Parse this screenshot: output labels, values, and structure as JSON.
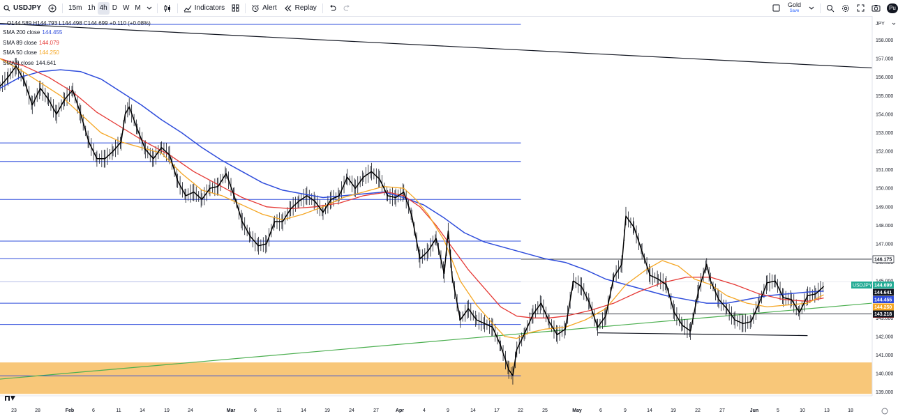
{
  "toolbar": {
    "symbol": "USDJPY",
    "intervals": [
      "15m",
      "1h",
      "4h",
      "D",
      "W",
      "M"
    ],
    "active_interval": "4h",
    "indicators_label": "Indicators",
    "alert_label": "Alert",
    "replay_label": "Replay",
    "layout_name": "Gold",
    "layout_status": "Save",
    "user_initials": "Pu"
  },
  "legend": {
    "ohlc": "O144.589 H144.793 L144.498 C144.699 +0.110 (+0.08%)",
    "studies": [
      {
        "label": "SMA 200 close",
        "value": "144.455",
        "color": "#2e4cdb"
      },
      {
        "label": "SMA 89 close",
        "value": "144.079",
        "color": "#e53935"
      },
      {
        "label": "SMA 50 close",
        "value": "144.250",
        "color": "#f5a623"
      },
      {
        "label": "SMA 5 close",
        "value": "144.641",
        "color": "#000000"
      }
    ]
  },
  "chart_data": {
    "type": "line",
    "symbol": "USDJPY",
    "currency": "JPY",
    "interval": "4h",
    "ylim": [
      138.8,
      159.3
    ],
    "y_ticks": [
      "139.000",
      "140.000",
      "141.000",
      "142.000",
      "143.000",
      "144.000",
      "145.000",
      "146.000",
      "147.000",
      "148.000",
      "149.000",
      "150.000",
      "151.000",
      "152.000",
      "153.000",
      "154.000",
      "155.000",
      "156.000",
      "157.000",
      "158.000"
    ],
    "x_ticks": [
      "23",
      "28",
      "Feb",
      "6",
      "11",
      "14",
      "19",
      "24",
      "Mar",
      "6",
      "11",
      "14",
      "19",
      "24",
      "27",
      "Apr",
      "4",
      "9",
      "14",
      "17",
      "22",
      "25",
      "May",
      "6",
      "9",
      "14",
      "19",
      "22",
      "27",
      "Jun",
      "5",
      "10",
      "13",
      "18"
    ],
    "grid": false,
    "legend_position": "top-left",
    "price_labels": [
      {
        "value": "146.175",
        "bg": "#ffffff",
        "fg": "#131722"
      },
      {
        "value": "144.699",
        "bg": "#22ab94",
        "fg": "#ffffff",
        "tag": "USDJPY"
      },
      {
        "value": "144.641",
        "bg": "#131722",
        "fg": "#ffffff"
      },
      {
        "value": "144.455",
        "bg": "#2e4cdb",
        "fg": "#ffffff"
      },
      {
        "value": "144.250",
        "bg": "#f5a623",
        "fg": "#ffffff"
      },
      {
        "value": "144.079",
        "bg": "#e53935",
        "fg": "#ffffff"
      },
      {
        "value": "143.218",
        "bg": "#131722",
        "fg": "#ffffff"
      }
    ],
    "horizontal_levels": [
      158.85,
      152.45,
      151.45,
      149.4,
      147.15,
      146.2,
      144.95,
      143.8,
      142.65,
      139.87
    ],
    "support_zone": [
      138.9,
      140.6
    ],
    "trendlines": [
      {
        "color": "#131722",
        "points": [
          [
            0,
            158.9
          ],
          [
            216,
            156.5
          ]
        ]
      },
      {
        "color": "#4caf50",
        "points": [
          [
            0,
            139.7
          ],
          [
            216,
            143.8
          ]
        ]
      },
      {
        "color": "#131722",
        "points": [
          [
            148,
            142.2
          ],
          [
            200,
            142.05
          ]
        ]
      }
    ],
    "series": [
      {
        "name": "SMA 5",
        "color": "#000000",
        "width": 1.5,
        "values": [
          [
            0,
            155.5
          ],
          [
            2,
            156.0
          ],
          [
            4,
            156.6
          ],
          [
            6,
            155.8
          ],
          [
            8,
            154.5
          ],
          [
            10,
            155.4
          ],
          [
            12,
            154.8
          ],
          [
            14,
            154.0
          ],
          [
            16,
            154.8
          ],
          [
            18,
            155.3
          ],
          [
            20,
            154.0
          ],
          [
            22,
            152.5
          ],
          [
            24,
            151.6
          ],
          [
            26,
            151.6
          ],
          [
            28,
            152.0
          ],
          [
            30,
            152.5
          ],
          [
            31,
            154.0
          ],
          [
            32,
            154.4
          ],
          [
            34,
            153.2
          ],
          [
            36,
            152.1
          ],
          [
            38,
            151.6
          ],
          [
            40,
            152.2
          ],
          [
            42,
            151.8
          ],
          [
            44,
            150.4
          ],
          [
            46,
            149.6
          ],
          [
            48,
            149.8
          ],
          [
            50,
            149.4
          ],
          [
            52,
            150.0
          ],
          [
            54,
            150.1
          ],
          [
            56,
            150.8
          ],
          [
            58,
            149.6
          ],
          [
            60,
            148.2
          ],
          [
            62,
            147.4
          ],
          [
            64,
            146.9
          ],
          [
            66,
            147.0
          ],
          [
            68,
            148.2
          ],
          [
            70,
            148.2
          ],
          [
            72,
            148.9
          ],
          [
            74,
            149.3
          ],
          [
            76,
            149.6
          ],
          [
            78,
            149.3
          ],
          [
            80,
            148.7
          ],
          [
            82,
            149.4
          ],
          [
            84,
            149.6
          ],
          [
            86,
            150.6
          ],
          [
            88,
            150.0
          ],
          [
            90,
            150.6
          ],
          [
            92,
            150.9
          ],
          [
            94,
            150.5
          ],
          [
            96,
            149.6
          ],
          [
            98,
            149.5
          ],
          [
            100,
            149.8
          ],
          [
            102,
            148.5
          ],
          [
            104,
            146.2
          ],
          [
            106,
            146.6
          ],
          [
            108,
            147.3
          ],
          [
            110,
            145.4
          ],
          [
            111,
            147.7
          ],
          [
            112,
            145.2
          ],
          [
            114,
            142.9
          ],
          [
            116,
            143.5
          ],
          [
            118,
            142.9
          ],
          [
            120,
            142.7
          ],
          [
            122,
            142.5
          ],
          [
            124,
            141.5
          ],
          [
            126,
            140.2
          ],
          [
            127,
            139.9
          ],
          [
            128,
            141.3
          ],
          [
            130,
            142.2
          ],
          [
            132,
            143.2
          ],
          [
            134,
            143.8
          ],
          [
            136,
            142.8
          ],
          [
            138,
            142.1
          ],
          [
            140,
            142.4
          ],
          [
            142,
            145.0
          ],
          [
            144,
            144.7
          ],
          [
            146,
            143.8
          ],
          [
            148,
            142.5
          ],
          [
            150,
            143.1
          ],
          [
            152,
            145.2
          ],
          [
            154,
            145.9
          ],
          [
            155,
            148.5
          ],
          [
            157,
            147.9
          ],
          [
            159,
            146.6
          ],
          [
            161,
            145.3
          ],
          [
            163,
            145.1
          ],
          [
            165,
            144.8
          ],
          [
            167,
            143.3
          ],
          [
            169,
            142.6
          ],
          [
            171,
            142.3
          ],
          [
            173,
            144.5
          ],
          [
            175,
            145.9
          ],
          [
            176,
            145.0
          ],
          [
            178,
            144.0
          ],
          [
            180,
            143.5
          ],
          [
            182,
            142.9
          ],
          [
            184,
            142.7
          ],
          [
            186,
            142.8
          ],
          [
            188,
            143.8
          ],
          [
            190,
            144.9
          ],
          [
            192,
            145.0
          ],
          [
            194,
            144.1
          ],
          [
            196,
            144.0
          ],
          [
            198,
            143.3
          ],
          [
            200,
            144.2
          ],
          [
            202,
            144.3
          ],
          [
            204,
            144.7
          ]
        ]
      },
      {
        "name": "SMA 50",
        "color": "#f5a623",
        "width": 1.3,
        "values": [
          [
            0,
            157.0
          ],
          [
            5,
            156.4
          ],
          [
            10,
            155.7
          ],
          [
            15,
            155.0
          ],
          [
            20,
            154.0
          ],
          [
            25,
            153.0
          ],
          [
            30,
            152.5
          ],
          [
            35,
            152.2
          ],
          [
            40,
            151.9
          ],
          [
            45,
            150.8
          ],
          [
            50,
            149.9
          ],
          [
            55,
            149.6
          ],
          [
            60,
            149.1
          ],
          [
            65,
            148.6
          ],
          [
            70,
            148.3
          ],
          [
            75,
            148.6
          ],
          [
            80,
            149.0
          ],
          [
            85,
            149.5
          ],
          [
            90,
            149.8
          ],
          [
            95,
            150.1
          ],
          [
            100,
            150.0
          ],
          [
            103,
            149.4
          ],
          [
            106,
            148.6
          ],
          [
            110,
            147.2
          ],
          [
            114,
            145.0
          ],
          [
            118,
            143.7
          ],
          [
            122,
            142.7
          ],
          [
            125,
            142.0
          ],
          [
            128,
            141.9
          ],
          [
            131,
            142.2
          ],
          [
            135,
            142.4
          ],
          [
            140,
            142.5
          ],
          [
            145,
            142.9
          ],
          [
            150,
            143.5
          ],
          [
            155,
            144.8
          ],
          [
            160,
            145.6
          ],
          [
            164,
            146.1
          ],
          [
            168,
            145.8
          ],
          [
            172,
            145.1
          ],
          [
            176,
            144.8
          ],
          [
            180,
            144.2
          ],
          [
            185,
            143.8
          ],
          [
            190,
            143.6
          ],
          [
            195,
            143.7
          ],
          [
            200,
            143.8
          ],
          [
            204,
            144.25
          ]
        ]
      },
      {
        "name": "SMA 89",
        "color": "#e53935",
        "width": 1.3,
        "values": [
          [
            0,
            157.0
          ],
          [
            6,
            156.6
          ],
          [
            12,
            156.0
          ],
          [
            18,
            155.2
          ],
          [
            24,
            154.1
          ],
          [
            30,
            153.3
          ],
          [
            36,
            152.5
          ],
          [
            42,
            151.8
          ],
          [
            48,
            150.9
          ],
          [
            54,
            150.2
          ],
          [
            60,
            149.5
          ],
          [
            66,
            149.0
          ],
          [
            72,
            148.9
          ],
          [
            78,
            149.0
          ],
          [
            84,
            149.2
          ],
          [
            90,
            149.6
          ],
          [
            96,
            149.8
          ],
          [
            100,
            149.6
          ],
          [
            104,
            149.0
          ],
          [
            108,
            148.0
          ],
          [
            112,
            146.8
          ],
          [
            116,
            145.6
          ],
          [
            120,
            144.6
          ],
          [
            124,
            143.6
          ],
          [
            128,
            143.1
          ],
          [
            132,
            143.0
          ],
          [
            136,
            143.0
          ],
          [
            140,
            143.1
          ],
          [
            146,
            143.4
          ],
          [
            152,
            143.8
          ],
          [
            158,
            144.4
          ],
          [
            164,
            144.9
          ],
          [
            170,
            145.2
          ],
          [
            176,
            145.2
          ],
          [
            182,
            144.8
          ],
          [
            188,
            144.3
          ],
          [
            194,
            144.0
          ],
          [
            200,
            143.9
          ],
          [
            204,
            144.08
          ]
        ]
      },
      {
        "name": "SMA 200",
        "color": "#2e4cdb",
        "width": 1.5,
        "values": [
          [
            0,
            155.4
          ],
          [
            5,
            156.0
          ],
          [
            10,
            156.3
          ],
          [
            15,
            156.4
          ],
          [
            20,
            156.3
          ],
          [
            25,
            155.9
          ],
          [
            30,
            155.2
          ],
          [
            35,
            154.5
          ],
          [
            40,
            153.7
          ],
          [
            45,
            153.0
          ],
          [
            50,
            152.2
          ],
          [
            55,
            151.5
          ],
          [
            60,
            150.9
          ],
          [
            65,
            150.3
          ],
          [
            70,
            149.9
          ],
          [
            75,
            149.7
          ],
          [
            80,
            149.5
          ],
          [
            85,
            149.6
          ],
          [
            90,
            149.7
          ],
          [
            95,
            149.8
          ],
          [
            100,
            149.5
          ],
          [
            105,
            149.1
          ],
          [
            110,
            148.4
          ],
          [
            115,
            147.6
          ],
          [
            120,
            147.1
          ],
          [
            125,
            146.8
          ],
          [
            130,
            146.5
          ],
          [
            135,
            146.2
          ],
          [
            140,
            146.0
          ],
          [
            145,
            145.6
          ],
          [
            150,
            145.1
          ],
          [
            155,
            144.8
          ],
          [
            160,
            144.5
          ],
          [
            165,
            144.2
          ],
          [
            170,
            144.0
          ],
          [
            175,
            143.8
          ],
          [
            180,
            143.8
          ],
          [
            185,
            144.0
          ],
          [
            190,
            144.2
          ],
          [
            195,
            144.3
          ],
          [
            200,
            144.4
          ],
          [
            204,
            144.455
          ]
        ]
      }
    ]
  }
}
